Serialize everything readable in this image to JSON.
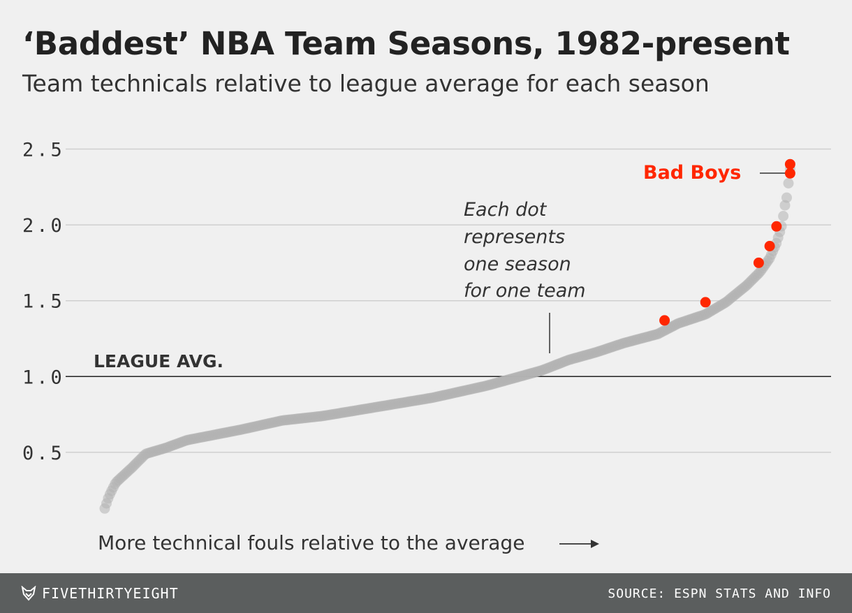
{
  "title": "‘Baddest’ NBA Team Seasons, 1982-present",
  "subtitle": "Team technicals relative to league average for each season",
  "footer": {
    "brand": "FIVETHIRTYEIGHT",
    "brand_icon": "fox-logo-icon",
    "source": "SOURCE: ESPN STATS AND INFO"
  },
  "colors": {
    "background": "#f0f0f0",
    "dots": "#b3b3b3",
    "highlight": "#ff2700",
    "footer_bg": "#5b5e5e"
  },
  "chart_data": {
    "type": "scatter",
    "title": "‘Baddest’ NBA Team Seasons, 1982-present",
    "subtitle": "Team technicals relative to league average for each season",
    "xlabel": "More technical fouls relative to the average",
    "ylabel": "",
    "ylim": [
      0,
      2.5
    ],
    "yticks": [
      0.5,
      1.0,
      1.5,
      2.0,
      2.5
    ],
    "ytick_labels": [
      "0.5",
      "1.0",
      "1.5",
      "2.0",
      "2.5"
    ],
    "grid": true,
    "reference_line": {
      "value": 1.0,
      "label": "LEAGUE AVG."
    },
    "annotation": "Each dot represents one season for one team",
    "annotation_lines": [
      "Each dot",
      "represents",
      "one season",
      "for one team"
    ],
    "point_count": 400,
    "sorted_curve_knots": [
      [
        0,
        0.13
      ],
      [
        3,
        0.21
      ],
      [
        8,
        0.3
      ],
      [
        20,
        0.4
      ],
      [
        30,
        0.49
      ],
      [
        45,
        0.53
      ],
      [
        60,
        0.58
      ],
      [
        100,
        0.65
      ],
      [
        130,
        0.71
      ],
      [
        160,
        0.74
      ],
      [
        200,
        0.8
      ],
      [
        240,
        0.86
      ],
      [
        280,
        0.94
      ],
      [
        300,
        0.99
      ],
      [
        320,
        1.04
      ],
      [
        340,
        1.11
      ],
      [
        360,
        1.16
      ],
      [
        380,
        1.22
      ],
      [
        405,
        1.28
      ],
      [
        420,
        1.35
      ],
      [
        440,
        1.41
      ],
      [
        455,
        1.49
      ],
      [
        470,
        1.6
      ],
      [
        480,
        1.69
      ],
      [
        487,
        1.78
      ],
      [
        492,
        1.88
      ],
      [
        496,
        2.0
      ],
      [
        498,
        2.12
      ],
      [
        500,
        2.2
      ],
      [
        501,
        2.3
      ],
      [
        502,
        2.37
      ]
    ],
    "highlight_series": {
      "name": "Bad Boys",
      "points": [
        {
          "x": 410,
          "y": 1.37
        },
        {
          "x": 440,
          "y": 1.49
        },
        {
          "x": 479,
          "y": 1.75
        },
        {
          "x": 487,
          "y": 1.86
        },
        {
          "x": 492,
          "y": 1.99
        },
        {
          "x": 502,
          "y": 2.34
        },
        {
          "x": 502,
          "y": 2.4
        }
      ]
    }
  }
}
